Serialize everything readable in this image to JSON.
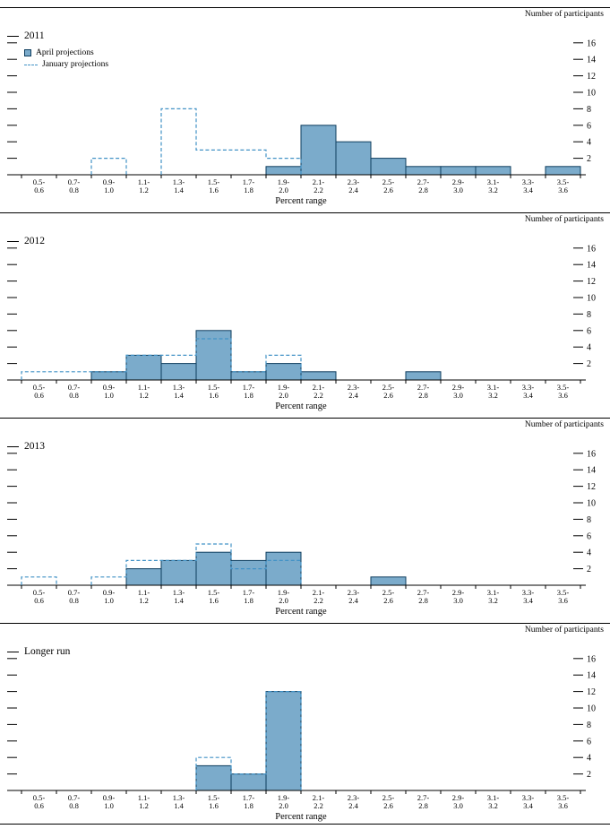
{
  "figure": {
    "y_axis_label": "Number of participants",
    "x_axis_label": "Percent range",
    "y_ticks": [
      2,
      4,
      6,
      8,
      10,
      12,
      14,
      16
    ],
    "ylim": [
      0,
      17
    ],
    "grid": false,
    "legend_position": "top-left, first panel only",
    "legend": [
      {
        "label": "April projections",
        "swatch": "bar"
      },
      {
        "label": "January projections",
        "swatch": "dashed-line"
      }
    ],
    "colors": {
      "bar_fill": "#7babcb",
      "bar_stroke": "#0e3d5e",
      "dash_stroke": "#4292c6",
      "axis": "#000000"
    }
  },
  "chart_data": [
    {
      "type": "bar",
      "title": "2011",
      "xlabel": "Percent range",
      "ylabel": "Number of participants",
      "ylim": [
        0,
        17
      ],
      "categories": [
        "0.5-0.6",
        "0.7-0.8",
        "0.9-1.0",
        "1.1-1.2",
        "1.3-1.4",
        "1.5-1.6",
        "1.7-1.8",
        "1.9-2.0",
        "2.1-2.2",
        "2.3-2.4",
        "2.5-2.6",
        "2.7-2.8",
        "2.9-3.0",
        "3.1-3.2",
        "3.3-3.4",
        "3.5-3.6"
      ],
      "series": [
        {
          "name": "April projections",
          "values": [
            0,
            0,
            0,
            0,
            0,
            0,
            0,
            1,
            6,
            4,
            2,
            1,
            1,
            1,
            0,
            1
          ]
        },
        {
          "name": "January projections",
          "values": [
            0,
            0,
            2,
            0,
            8,
            3,
            3,
            2,
            0,
            0,
            0,
            0,
            0,
            0,
            0,
            0
          ]
        }
      ]
    },
    {
      "type": "bar",
      "title": "2012",
      "xlabel": "Percent range",
      "ylabel": "Number of participants",
      "ylim": [
        0,
        17
      ],
      "categories": [
        "0.5-0.6",
        "0.7-0.8",
        "0.9-1.0",
        "1.1-1.2",
        "1.3-1.4",
        "1.5-1.6",
        "1.7-1.8",
        "1.9-2.0",
        "2.1-2.2",
        "2.3-2.4",
        "2.5-2.6",
        "2.7-2.8",
        "2.9-3.0",
        "3.1-3.2",
        "3.3-3.4",
        "3.5-3.6"
      ],
      "series": [
        {
          "name": "April projections",
          "values": [
            0,
            0,
            1,
            3,
            2,
            6,
            1,
            2,
            1,
            0,
            0,
            1,
            0,
            0,
            0,
            0
          ]
        },
        {
          "name": "January projections",
          "values": [
            1,
            1,
            1,
            3,
            3,
            5,
            1,
            3,
            0,
            0,
            0,
            0,
            0,
            0,
            0,
            0
          ]
        }
      ]
    },
    {
      "type": "bar",
      "title": "2013",
      "xlabel": "Percent range",
      "ylabel": "Number of participants",
      "ylim": [
        0,
        17
      ],
      "categories": [
        "0.5-0.6",
        "0.7-0.8",
        "0.9-1.0",
        "1.1-1.2",
        "1.3-1.4",
        "1.5-1.6",
        "1.7-1.8",
        "1.9-2.0",
        "2.1-2.2",
        "2.3-2.4",
        "2.5-2.6",
        "2.7-2.8",
        "2.9-3.0",
        "3.1-3.2",
        "3.3-3.4",
        "3.5-3.6"
      ],
      "series": [
        {
          "name": "April projections",
          "values": [
            0,
            0,
            0,
            2,
            3,
            4,
            3,
            4,
            0,
            0,
            1,
            0,
            0,
            0,
            0,
            0
          ]
        },
        {
          "name": "January projections",
          "values": [
            1,
            0,
            1,
            3,
            3,
            5,
            2,
            3,
            0,
            0,
            0,
            0,
            0,
            0,
            0,
            0
          ]
        }
      ]
    },
    {
      "type": "bar",
      "title": "Longer run",
      "xlabel": "Percent range",
      "ylabel": "Number of participants",
      "ylim": [
        0,
        17
      ],
      "categories": [
        "0.5-0.6",
        "0.7-0.8",
        "0.9-1.0",
        "1.1-1.2",
        "1.3-1.4",
        "1.5-1.6",
        "1.7-1.8",
        "1.9-2.0",
        "2.1-2.2",
        "2.3-2.4",
        "2.5-2.6",
        "2.7-2.8",
        "2.9-3.0",
        "3.1-3.2",
        "3.3-3.4",
        "3.5-3.6"
      ],
      "series": [
        {
          "name": "April projections",
          "values": [
            0,
            0,
            0,
            0,
            0,
            3,
            2,
            12,
            0,
            0,
            0,
            0,
            0,
            0,
            0,
            0
          ]
        },
        {
          "name": "January projections",
          "values": [
            0,
            0,
            0,
            0,
            0,
            4,
            2,
            12,
            0,
            0,
            0,
            0,
            0,
            0,
            0,
            0
          ]
        }
      ]
    }
  ]
}
